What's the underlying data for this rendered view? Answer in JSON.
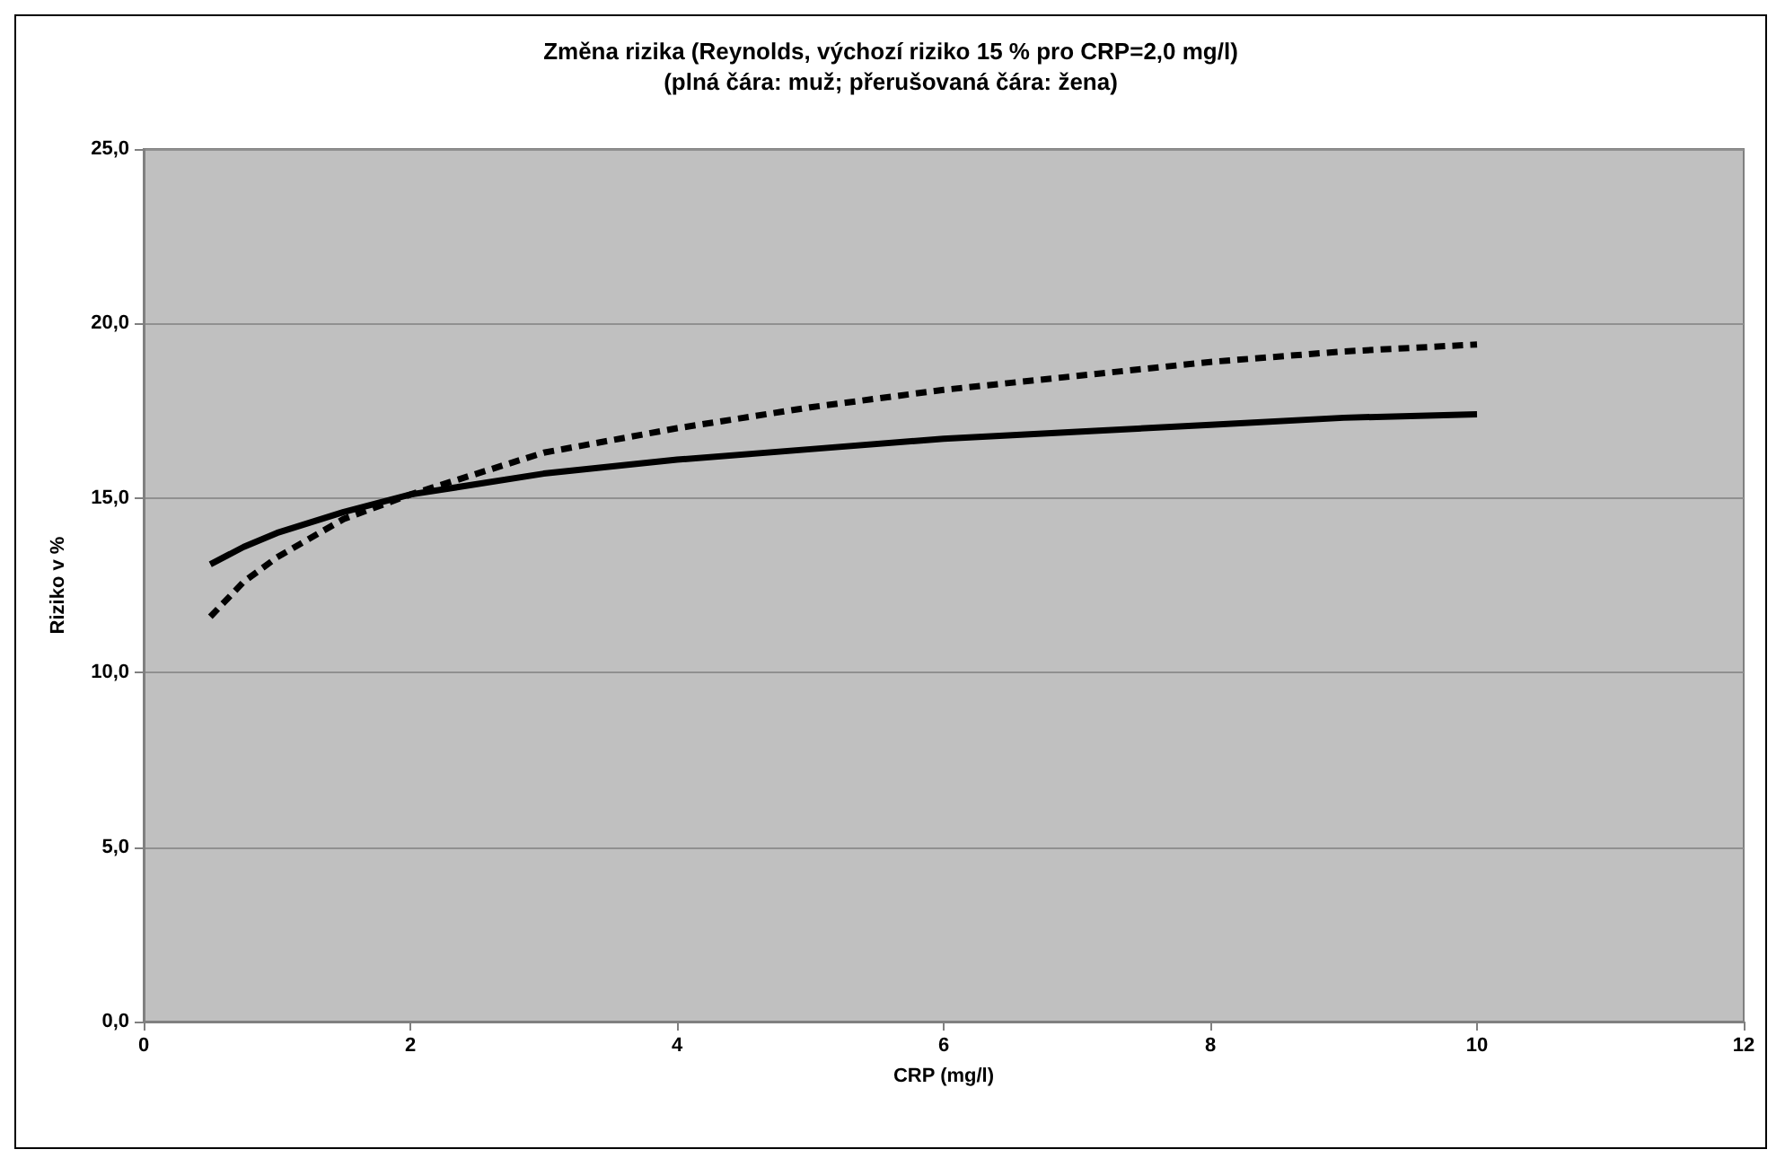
{
  "chart_data": {
    "type": "line",
    "title": "Změna rizika (Reynolds, výchozí riziko 15 % pro CRP=2,0 mg/l)",
    "subtitle": "(plná čára: muž; přerušovaná čára: žena)",
    "xlabel": "CRP (mg/l)",
    "ylabel": "Riziko v %",
    "xlim": [
      0,
      12
    ],
    "xticks": [
      0,
      2,
      4,
      6,
      8,
      10,
      12
    ],
    "ylim": [
      0,
      25
    ],
    "yticks": [
      {
        "value": 0,
        "label": "0,0"
      },
      {
        "value": 5,
        "label": "5,0"
      },
      {
        "value": 10,
        "label": "10,0"
      },
      {
        "value": 15,
        "label": "15,0"
      },
      {
        "value": 20,
        "label": "20,0"
      },
      {
        "value": 25,
        "label": "25,0"
      }
    ],
    "grid": "y",
    "marker": "none",
    "series": [
      {
        "color": "#000000",
        "line_style": "solid",
        "x": [
          0.5,
          0.75,
          1,
          1.5,
          2,
          3,
          4,
          5,
          6,
          7,
          8,
          9,
          10
        ],
        "values": [
          13.1,
          13.6,
          14.0,
          14.6,
          15.1,
          15.7,
          16.1,
          16.4,
          16.7,
          16.9,
          17.1,
          17.3,
          17.4
        ]
      },
      {
        "color": "#000000",
        "line_style": "dashed",
        "x": [
          0.5,
          0.75,
          1,
          1.5,
          2,
          3,
          4,
          5,
          6,
          7,
          8,
          9,
          10
        ],
        "values": [
          11.6,
          12.6,
          13.3,
          14.4,
          15.1,
          16.3,
          17.0,
          17.6,
          18.1,
          18.5,
          18.9,
          19.2,
          19.4
        ]
      }
    ]
  }
}
